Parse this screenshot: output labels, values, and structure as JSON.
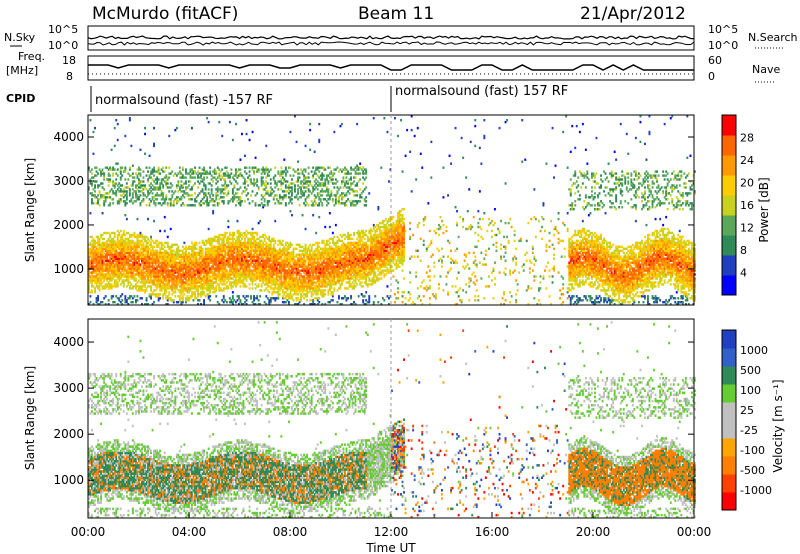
{
  "header": {
    "station": "McMurdo (fitACF)",
    "beam": "Beam 11",
    "date": "21/Apr/2012"
  },
  "params": {
    "nsky_label": "N.Sky",
    "nsky_ticks": [
      "10^5",
      "10^0"
    ],
    "nsearch_label": "N.Search",
    "nsearch_ticks": [
      "10^5",
      "10^0"
    ],
    "freq_label_1": "Freq.",
    "freq_label_2": "[MHz]",
    "freq_ticks": [
      "18",
      "8"
    ],
    "nave_label": "Nave",
    "nave_ticks": [
      "60",
      "0"
    ],
    "cpid_label": "CPID",
    "cpid_segments": [
      "normalsound (fast) -157 RF",
      "normalsound (fast) 157 RF"
    ]
  },
  "colors": {
    "power_scale": [
      "#0000ff",
      "#1f3fbf",
      "#2e8b57",
      "#5aa85a",
      "#c8d21e",
      "#ffcc00",
      "#ff9900",
      "#ff6600",
      "#ff0000"
    ],
    "velocity_scale": [
      "#2040c0",
      "#3060c8",
      "#2e8b57",
      "#66cc33",
      "#c0c0c0",
      "#c0c0c0",
      "#ffa500",
      "#ff7f00",
      "#ff4000",
      "#ff0000"
    ]
  },
  "chart_data": [
    {
      "type": "heatmap",
      "panel": "power",
      "xlabel": "Time UT",
      "ylabel": "Slant Range [km]",
      "x_ticks": [
        "00:00",
        "04:00",
        "08:00",
        "12:00",
        "16:00",
        "20:00",
        "00:00"
      ],
      "xlim": [
        0,
        24
      ],
      "ylim": [
        180,
        4500
      ],
      "y_ticks": [
        1000,
        2000,
        3000,
        4000
      ],
      "colorbar_label": "Power [dB]",
      "colorbar_ticks": [
        "28",
        "24",
        "20",
        "16",
        "12",
        "8",
        "4"
      ],
      "colorbar_range": [
        0,
        30
      ]
    },
    {
      "type": "heatmap",
      "panel": "velocity",
      "xlabel": "Time UT",
      "ylabel": "Slant Range [km]",
      "x_ticks": [
        "00:00",
        "04:00",
        "08:00",
        "12:00",
        "16:00",
        "20:00",
        "00:00"
      ],
      "xlim": [
        0,
        24
      ],
      "ylim": [
        180,
        4500
      ],
      "y_ticks": [
        1000,
        2000,
        3000,
        4000
      ],
      "colorbar_label": "Velocity [m s⁻¹]",
      "colorbar_ticks": [
        "1000",
        "500",
        "100",
        "25",
        "-25",
        "-100",
        "-500",
        "-1000"
      ],
      "colorbar_range": [
        -1000,
        1000
      ]
    }
  ]
}
